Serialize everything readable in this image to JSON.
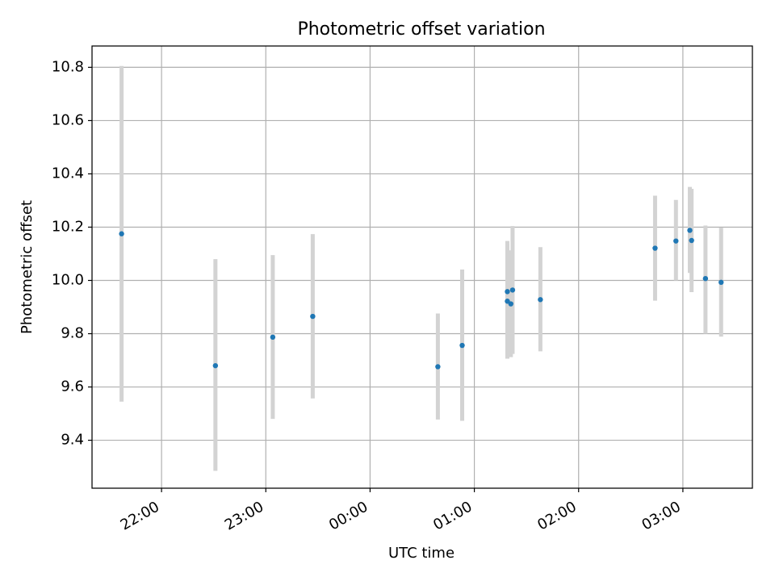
{
  "chart_data": {
    "type": "scatter",
    "title": "Photometric offset variation",
    "xlabel": "UTC time",
    "ylabel": "Photometric offset",
    "x_scale": "time",
    "xlim": [
      "21:20",
      "03:40"
    ],
    "ylim": [
      9.22,
      10.88
    ],
    "grid": true,
    "colors": {
      "points": "#1f77b4",
      "errorbars": "#d3d3d3",
      "grid": "#b0b0b0",
      "axes": "#000000",
      "background": "#ffffff"
    },
    "x_ticks": [
      {
        "time": "22:00",
        "label": "22:00"
      },
      {
        "time": "23:00",
        "label": "23:00"
      },
      {
        "time": "00:00",
        "label": "00:00"
      },
      {
        "time": "01:00",
        "label": "01:00"
      },
      {
        "time": "02:00",
        "label": "02:00"
      },
      {
        "time": "03:00",
        "label": "03:00"
      }
    ],
    "y_ticks": [
      {
        "value": 9.4,
        "label": "9.4"
      },
      {
        "value": 9.6,
        "label": "9.6"
      },
      {
        "value": 9.8,
        "label": "9.8"
      },
      {
        "value": 10.0,
        "label": "10.0"
      },
      {
        "value": 10.2,
        "label": "10.2"
      },
      {
        "value": 10.4,
        "label": "10.4"
      },
      {
        "value": 10.6,
        "label": "10.6"
      },
      {
        "value": 10.8,
        "label": "10.8"
      }
    ],
    "points": [
      {
        "time": "21:37",
        "y": 10.175,
        "low": 9.545,
        "high": 10.805
      },
      {
        "time": "22:31",
        "y": 9.68,
        "low": 9.285,
        "high": 10.08
      },
      {
        "time": "23:04",
        "y": 9.787,
        "low": 9.48,
        "high": 10.095
      },
      {
        "time": "23:27",
        "y": 9.865,
        "low": 9.557,
        "high": 10.174
      },
      {
        "time": "00:39",
        "y": 9.676,
        "low": 9.478,
        "high": 9.876
      },
      {
        "time": "00:53",
        "y": 9.756,
        "low": 9.473,
        "high": 10.041
      },
      {
        "time": "01:19",
        "y": 9.958,
        "low": 9.772,
        "high": 10.148
      },
      {
        "time": "01:19",
        "y": 9.922,
        "low": 9.706,
        "high": 10.137
      },
      {
        "time": "01:21",
        "y": 9.912,
        "low": 9.712,
        "high": 10.113
      },
      {
        "time": "01:22",
        "y": 9.964,
        "low": 9.724,
        "high": 10.204
      },
      {
        "time": "01:38",
        "y": 9.928,
        "low": 9.734,
        "high": 10.125
      },
      {
        "time": "02:44",
        "y": 10.121,
        "low": 9.924,
        "high": 10.318
      },
      {
        "time": "02:56",
        "y": 10.148,
        "low": 10.0,
        "high": 10.302
      },
      {
        "time": "03:04",
        "y": 10.188,
        "low": 10.028,
        "high": 10.351
      },
      {
        "time": "03:05",
        "y": 10.15,
        "low": 9.956,
        "high": 10.344
      },
      {
        "time": "03:13",
        "y": 10.007,
        "low": 9.8,
        "high": 10.206
      },
      {
        "time": "03:22",
        "y": 9.993,
        "low": 9.789,
        "high": 10.198
      }
    ]
  }
}
